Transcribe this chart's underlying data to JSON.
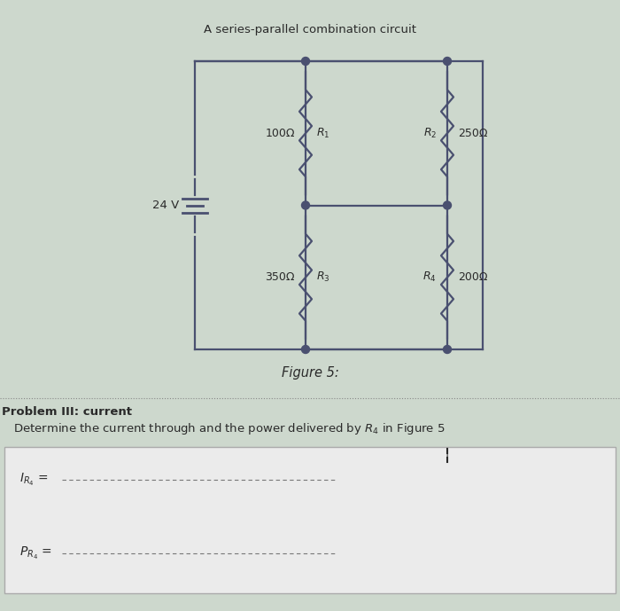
{
  "title": "A series-parallel combination circuit",
  "figure_label": "Figure 5:",
  "problem_header": "roblem III: current",
  "problem_text": "Determine the current through and the power delivered by $R_4$ in Figure 5",
  "voltage_label": "24 V",
  "components": {
    "R1": {
      "label": "$R_1$",
      "value": "100Ω"
    },
    "R2": {
      "label": "$R_2$",
      "value": "250Ω"
    },
    "R3": {
      "label": "$R_3$",
      "value": "350Ω"
    },
    "R4": {
      "label": "$R_4$",
      "value": "200Ω"
    }
  },
  "bg_color": "#cdd8cd",
  "text_color": "#2a2a2a",
  "wire_color": "#4a5070",
  "answer_bg": "#e8e8e8",
  "dot_line_color": "#666666"
}
